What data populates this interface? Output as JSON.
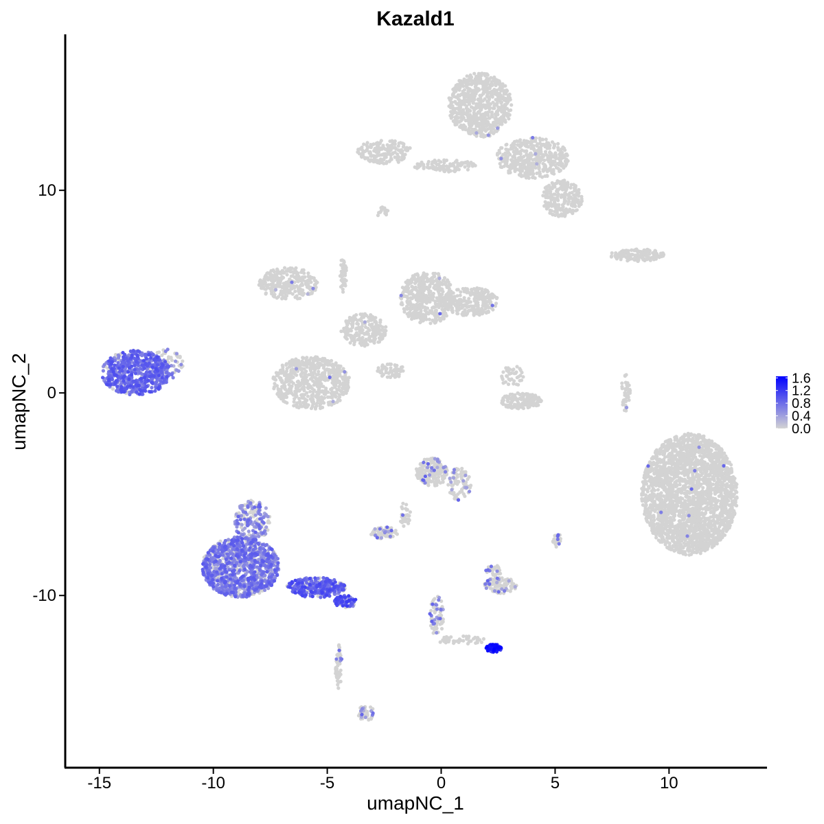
{
  "chart_data": {
    "type": "scatter",
    "title": "Kazald1",
    "xlabel": "umapNC_1",
    "ylabel": "umapNC_2",
    "xlim": [
      -16.5,
      14.3
    ],
    "ylim": [
      -18.5,
      17.7
    ],
    "x_ticks": [
      -15,
      -10,
      -5,
      0,
      5,
      10
    ],
    "x_tick_labels": [
      "-15",
      "-10",
      "-5",
      "0",
      "5",
      "10"
    ],
    "y_ticks": [
      10,
      0,
      -10
    ],
    "y_tick_labels": [
      "10",
      "0",
      "-10"
    ],
    "grid": false,
    "legend": {
      "placement": "right",
      "type": "colorbar",
      "min": 0,
      "max": 1.65,
      "ticks": [
        1.6,
        1.2,
        0.8,
        0.4,
        0.0
      ],
      "tick_labels": [
        "1.6",
        "1.2",
        "0.8",
        "0.4",
        "0.0"
      ],
      "color_low": "#d3d3d3",
      "color_high": "#0000ff"
    },
    "clusters": [
      {
        "name": "left-blob",
        "cx": -13.4,
        "cy": 1.0,
        "rx": 1.5,
        "ry": 1.1,
        "n": 650,
        "expr_fraction": 0.88,
        "expr_mean": 0.75
      },
      {
        "name": "left-tail",
        "cx": -12.0,
        "cy": 1.4,
        "rx": 0.7,
        "ry": 0.8,
        "n": 60,
        "expr_fraction": 0.35,
        "expr_mean": 0.5
      },
      {
        "name": "right-big",
        "cx": 10.9,
        "cy": -5.0,
        "rx": 2.1,
        "ry": 3.0,
        "n": 2400,
        "expr_fraction": 0.004,
        "expr_mean": 0.55
      },
      {
        "name": "top-body",
        "cx": 1.7,
        "cy": 14.2,
        "rx": 1.4,
        "ry": 1.6,
        "n": 700,
        "expr_fraction": 0.006,
        "expr_mean": 0.5
      },
      {
        "name": "top-right-lobe",
        "cx": 4.0,
        "cy": 11.6,
        "rx": 1.6,
        "ry": 1.0,
        "n": 450,
        "expr_fraction": 0.008,
        "expr_mean": 0.55
      },
      {
        "name": "top-lower-right",
        "cx": 5.3,
        "cy": 9.6,
        "rx": 0.9,
        "ry": 0.9,
        "n": 220,
        "expr_fraction": 0.01,
        "expr_mean": 0.5
      },
      {
        "name": "top-left-arm",
        "cx": -2.5,
        "cy": 11.9,
        "rx": 1.2,
        "ry": 0.6,
        "n": 180,
        "expr_fraction": 0.006,
        "expr_mean": 0.5
      },
      {
        "name": "top-bridge",
        "cx": 0.2,
        "cy": 11.2,
        "rx": 1.4,
        "ry": 0.3,
        "n": 110,
        "expr_fraction": 0.0,
        "expr_mean": 0.0
      },
      {
        "name": "top-small-bit",
        "cx": -2.6,
        "cy": 8.9,
        "rx": 0.3,
        "ry": 0.3,
        "n": 15,
        "expr_fraction": 0.0,
        "expr_mean": 0.0
      },
      {
        "name": "mid-left-arm",
        "cx": -6.7,
        "cy": 5.4,
        "rx": 1.3,
        "ry": 0.8,
        "n": 280,
        "expr_fraction": 0.006,
        "expr_mean": 0.5
      },
      {
        "name": "mid-left-lobe",
        "cx": -5.7,
        "cy": 0.5,
        "rx": 1.7,
        "ry": 1.3,
        "n": 600,
        "expr_fraction": 0.006,
        "expr_mean": 0.5
      },
      {
        "name": "mid-right-lobe",
        "cx": -0.6,
        "cy": 4.7,
        "rx": 1.2,
        "ry": 1.3,
        "n": 450,
        "expr_fraction": 0.015,
        "expr_mean": 0.55
      },
      {
        "name": "mid-far-right",
        "cx": 1.3,
        "cy": 4.5,
        "rx": 1.2,
        "ry": 0.7,
        "n": 260,
        "expr_fraction": 0.006,
        "expr_mean": 0.5
      },
      {
        "name": "mid-hub",
        "cx": -3.4,
        "cy": 3.1,
        "rx": 1.0,
        "ry": 0.8,
        "n": 220,
        "expr_fraction": 0.02,
        "expr_mean": 0.6
      },
      {
        "name": "mid-top-thin",
        "cx": -4.3,
        "cy": 5.8,
        "rx": 0.15,
        "ry": 0.9,
        "n": 40,
        "expr_fraction": 0.0,
        "expr_mean": 0.0
      },
      {
        "name": "mid-stick",
        "cx": -2.2,
        "cy": 1.1,
        "rx": 0.6,
        "ry": 0.35,
        "n": 60,
        "expr_fraction": 0.0,
        "expr_mean": 0.0
      },
      {
        "name": "right-hook",
        "cx": 8.6,
        "cy": 6.8,
        "rx": 1.2,
        "ry": 0.3,
        "n": 160,
        "expr_fraction": 0.008,
        "expr_mean": 0.5
      },
      {
        "name": "mid-small",
        "cx": 3.5,
        "cy": -0.4,
        "rx": 0.9,
        "ry": 0.4,
        "n": 160,
        "expr_fraction": 0.0,
        "expr_mean": 0.0
      },
      {
        "name": "mid-small-top",
        "cx": 3.1,
        "cy": 0.8,
        "rx": 0.5,
        "ry": 0.6,
        "n": 40,
        "expr_fraction": 0.0,
        "expr_mean": 0.0
      },
      {
        "name": "right-strand",
        "cx": 8.1,
        "cy": 0.0,
        "rx": 0.2,
        "ry": 0.9,
        "n": 40,
        "expr_fraction": 0.03,
        "expr_mean": 0.5
      },
      {
        "name": "lower-left-body",
        "cx": -8.8,
        "cy": -8.6,
        "rx": 1.7,
        "ry": 1.5,
        "n": 1100,
        "expr_fraction": 0.72,
        "expr_mean": 0.65
      },
      {
        "name": "lower-left-top",
        "cx": -8.3,
        "cy": -6.3,
        "rx": 0.8,
        "ry": 1.0,
        "n": 180,
        "expr_fraction": 0.55,
        "expr_mean": 0.6
      },
      {
        "name": "lower-left-tail",
        "cx": -5.5,
        "cy": -9.6,
        "rx": 1.3,
        "ry": 0.5,
        "n": 300,
        "expr_fraction": 0.8,
        "expr_mean": 0.85
      },
      {
        "name": "lower-tail-end",
        "cx": -4.2,
        "cy": -10.3,
        "rx": 0.5,
        "ry": 0.3,
        "n": 80,
        "expr_fraction": 0.7,
        "expr_mean": 0.9
      },
      {
        "name": "lower-stem",
        "cx": -4.5,
        "cy": -13.6,
        "rx": 0.15,
        "ry": 1.2,
        "n": 50,
        "expr_fraction": 0.1,
        "expr_mean": 0.5
      },
      {
        "name": "lower-stem-end",
        "cx": -3.3,
        "cy": -15.8,
        "rx": 0.35,
        "ry": 0.4,
        "n": 40,
        "expr_fraction": 0.3,
        "expr_mean": 0.6
      },
      {
        "name": "center-lower",
        "cx": -0.4,
        "cy": -3.9,
        "rx": 0.7,
        "ry": 0.7,
        "n": 180,
        "expr_fraction": 0.12,
        "expr_mean": 0.6
      },
      {
        "name": "center-lower-right",
        "cx": 0.8,
        "cy": -4.5,
        "rx": 0.5,
        "ry": 0.8,
        "n": 90,
        "expr_fraction": 0.12,
        "expr_mean": 0.6
      },
      {
        "name": "center-strand",
        "cx": -1.6,
        "cy": -6.0,
        "rx": 0.25,
        "ry": 0.6,
        "n": 30,
        "expr_fraction": 0.05,
        "expr_mean": 0.5
      },
      {
        "name": "center-small-left",
        "cx": -2.5,
        "cy": -6.9,
        "rx": 0.6,
        "ry": 0.3,
        "n": 70,
        "expr_fraction": 0.15,
        "expr_mean": 0.6
      },
      {
        "name": "center-small-right",
        "cx": 2.6,
        "cy": -9.5,
        "rx": 0.7,
        "ry": 0.4,
        "n": 110,
        "expr_fraction": 0.12,
        "expr_mean": 0.6
      },
      {
        "name": "center-small-right-top",
        "cx": 2.3,
        "cy": -8.8,
        "rx": 0.35,
        "ry": 0.3,
        "n": 25,
        "expr_fraction": 0.1,
        "expr_mean": 0.6
      },
      {
        "name": "right-tiny-pair",
        "cx": 5.1,
        "cy": -7.3,
        "rx": 0.2,
        "ry": 0.35,
        "n": 20,
        "expr_fraction": 0.1,
        "expr_mean": 0.6
      },
      {
        "name": "lower-vertical",
        "cx": -0.2,
        "cy": -11.0,
        "rx": 0.3,
        "ry": 1.0,
        "n": 70,
        "expr_fraction": 0.35,
        "expr_mean": 0.6
      },
      {
        "name": "lower-horizontal",
        "cx": 0.9,
        "cy": -12.2,
        "rx": 1.1,
        "ry": 0.2,
        "n": 40,
        "expr_fraction": 0.0,
        "expr_mean": 0.0
      },
      {
        "name": "lower-right-cluster",
        "cx": 2.3,
        "cy": -12.6,
        "rx": 0.35,
        "ry": 0.2,
        "n": 90,
        "expr_fraction": 0.95,
        "expr_mean": 1.35
      }
    ]
  }
}
